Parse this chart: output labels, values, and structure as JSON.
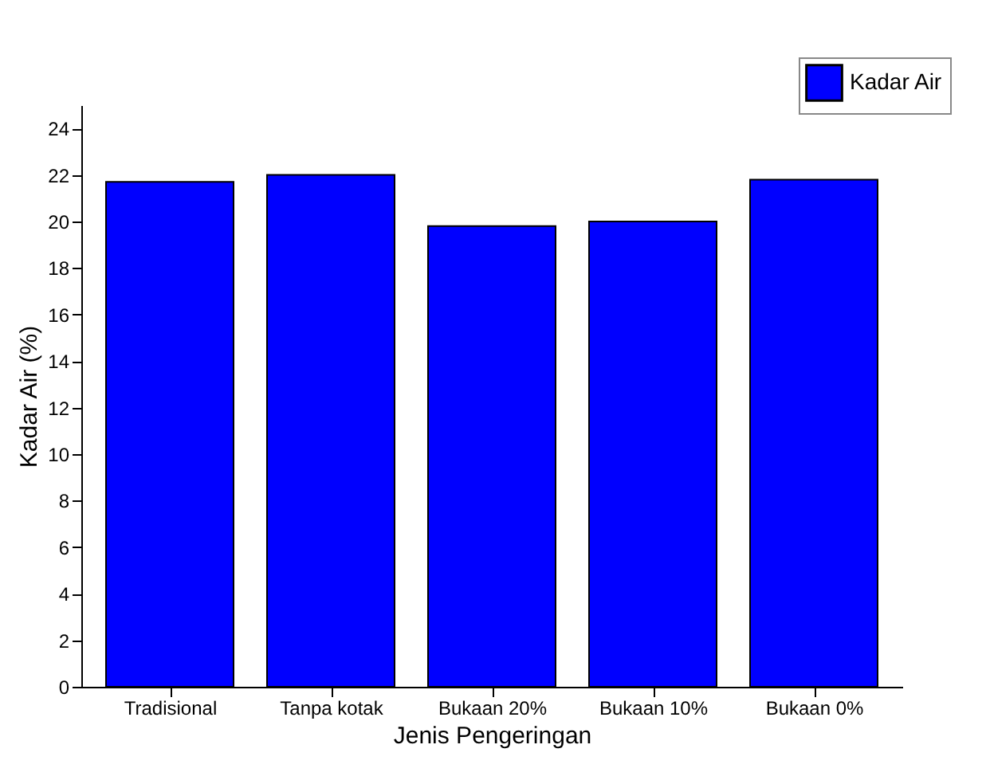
{
  "chart_data": {
    "type": "bar",
    "xlabel": "Jenis Pengeringan",
    "ylabel": "Kadar Air (%)",
    "categories": [
      "Tradisional",
      "Tanpa kotak",
      "Bukaan 20%",
      "Bukaan 10%",
      "Bukaan 0%"
    ],
    "series": [
      {
        "name": "Kadar Air",
        "color": "#0000ff",
        "values": [
          21.7,
          22.0,
          19.8,
          20.0,
          21.8
        ]
      }
    ],
    "ylim": [
      0,
      25
    ],
    "yticks": [
      0,
      2,
      4,
      6,
      8,
      10,
      12,
      14,
      16,
      18,
      20,
      22,
      24
    ],
    "grid": false,
    "legend": "top right"
  }
}
